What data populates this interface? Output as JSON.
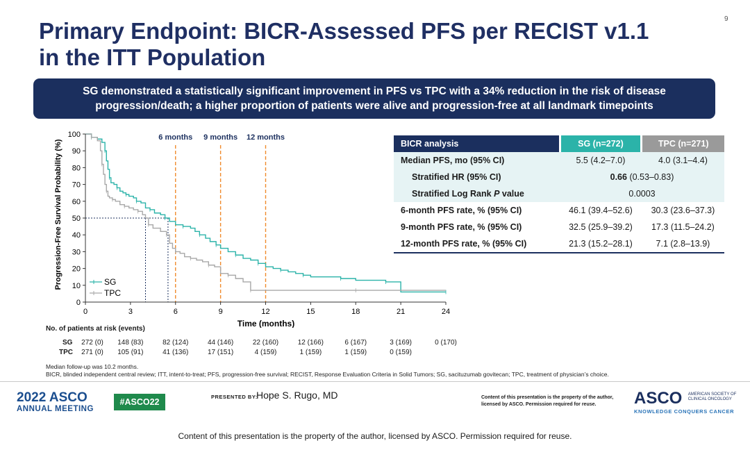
{
  "slide_number": "9",
  "title_line1": "Primary Endpoint: BICR-Assessed PFS per RECIST v1.1",
  "title_line2": "in the ITT Population",
  "banner_line1": "SG demonstrated a statistically significant improvement in PFS vs TPC with a 34% reduction in the risk of disease",
  "banner_line2": "progression/death; a higher proportion of patients were alive and progression-free at all landmark timepoints",
  "chart_data": {
    "type": "line",
    "ylabel": "Progression-Free Survival Probability (%)",
    "xlabel": "Time (months)",
    "xlim": [
      0,
      24
    ],
    "ylim": [
      0,
      100
    ],
    "x_ticks": [
      "0",
      "3",
      "6",
      "9",
      "12",
      "15",
      "18",
      "21",
      "24"
    ],
    "y_ticks": [
      "0",
      "10",
      "20",
      "30",
      "40",
      "50",
      "60",
      "70",
      "80",
      "90",
      "100"
    ],
    "landmarks": [
      {
        "x": 6,
        "label": "6 months"
      },
      {
        "x": 9,
        "label": "9 months"
      },
      {
        "x": 12,
        "label": "12 months"
      }
    ],
    "median_markers": [
      {
        "series": "SG",
        "x": 5.5
      },
      {
        "series": "TPC",
        "x": 4.0
      }
    ],
    "legend": "bottom-left",
    "colors": {
      "SG": "#2bb3a9",
      "TPC": "#a8a8a8",
      "landmark": "#f08a2c",
      "median": "#1b2f5e"
    },
    "series": [
      {
        "name": "SG",
        "x": [
          0,
          0.4,
          0.8,
          1.1,
          1.3,
          1.4,
          1.5,
          1.6,
          1.7,
          1.9,
          2.1,
          2.3,
          2.5,
          2.7,
          2.9,
          3.2,
          3.4,
          3.7,
          4.0,
          4.3,
          4.6,
          5.0,
          5.3,
          5.6,
          6.0,
          6.5,
          7.0,
          7.3,
          7.6,
          8.0,
          8.3,
          8.7,
          9.0,
          9.5,
          10.0,
          10.5,
          11.0,
          11.5,
          12.0,
          12.5,
          13.0,
          13.5,
          14.0,
          14.5,
          15.0,
          16.0,
          17.0,
          18.0,
          19.0,
          20.0,
          20.9,
          21.0,
          24.0
        ],
        "values": [
          100,
          98,
          97,
          95,
          90,
          84,
          79,
          74,
          71,
          70,
          68,
          66,
          65,
          64,
          63,
          62,
          60,
          59,
          56,
          55,
          53,
          52,
          50,
          48,
          46,
          45,
          44,
          42,
          40,
          38,
          36,
          34,
          32,
          30,
          28,
          26,
          25,
          23,
          21,
          20,
          19,
          18,
          17,
          16,
          15,
          15,
          14,
          13,
          13,
          12,
          12,
          6,
          6
        ]
      },
      {
        "name": "TPC",
        "x": [
          0,
          0.4,
          0.8,
          1.0,
          1.1,
          1.2,
          1.3,
          1.4,
          1.5,
          1.6,
          1.8,
          2.0,
          2.3,
          2.6,
          2.9,
          3.2,
          3.5,
          3.8,
          4.0,
          4.2,
          4.5,
          5.0,
          5.4,
          5.6,
          5.8,
          6.0,
          6.3,
          6.6,
          7.0,
          7.4,
          7.8,
          8.2,
          8.6,
          9.0,
          9.5,
          10.0,
          10.5,
          11.0,
          12.0,
          15.0,
          18.0,
          21.0,
          24.0
        ],
        "values": [
          100,
          98,
          96,
          90,
          82,
          76,
          70,
          66,
          63,
          62,
          61,
          60,
          58,
          57,
          56,
          55,
          54,
          52,
          50,
          46,
          44,
          42,
          40,
          35,
          32,
          30,
          29,
          27,
          26,
          25,
          24,
          22,
          21,
          17,
          16,
          14,
          12,
          7,
          7,
          7,
          7,
          7,
          7
        ]
      }
    ]
  },
  "legend": {
    "sg": "SG",
    "tpc": "TPC"
  },
  "risk": {
    "title": "No. of patients at risk (events)",
    "sg_label": "SG",
    "tpc_label": "TPC",
    "sg": [
      "272 (0)",
      "148 (83)",
      "82 (124)",
      "44 (146)",
      "22 (160)",
      "12 (166)",
      "6 (167)",
      "3 (169)",
      "0 (170)"
    ],
    "tpc": [
      "271 (0)",
      "105 (91)",
      "41 (136)",
      "17 (151)",
      "4 (159)",
      "1 (159)",
      "1 (159)",
      "0 (159)",
      ""
    ]
  },
  "table": {
    "header": {
      "label": "BICR analysis",
      "sg": "SG (n=272)",
      "tpc": "TPC (n=271)"
    },
    "median": {
      "label": "Median PFS, mo (95% CI)",
      "sg": "5.5 (4.2–7.0)",
      "tpc": "4.0 (3.1–4.4)"
    },
    "hr": {
      "label": "Stratified HR (95% CI)",
      "value_bold": "0.66",
      "value_rest": " (0.53–0.83)"
    },
    "logrank": {
      "label_pre": "Stratified Log Rank ",
      "label_p": "P",
      "label_post": " value",
      "value": "0.0003"
    },
    "rows": [
      {
        "label": "6-month PFS rate, % (95% CI)",
        "sg": "46.1 (39.4–52.6)",
        "tpc": "30.3 (23.6–37.3)"
      },
      {
        "label": "9-month PFS rate, % (95% CI)",
        "sg": "32.5 (25.9–39.2)",
        "tpc": "17.3 (11.5–24.2)"
      },
      {
        "label": "12-month PFS rate, % (95% CI)",
        "sg": "21.3 (15.2–28.1)",
        "tpc": "7.1 (2.8–13.9)"
      }
    ]
  },
  "footnote1": "Median follow-up was 10.2 months.",
  "footnote2": "BICR, blinded independent central review; ITT, intent-to-treat; PFS, progression-free survival; RECIST, Response Evaluation Criteria in Solid Tumors; SG, sacituzumab govitecan; TPC, treatment of physician’s choice.",
  "footer": {
    "asco_year": "2022 ASCO",
    "asco_meeting": "ANNUAL MEETING",
    "hashtag": "#ASCO22",
    "presented_by": "PRESENTED BY:",
    "presenter": "Hope S. Rugo, MD",
    "small_notice": "Content of this presentation is the property of the author, licensed by ASCO. Permission required for reuse.",
    "asco_word": "ASCO",
    "asco_society": "AMERICAN SOCIETY OF CLINICAL ONCOLOGY",
    "asco_tagline": "KNOWLEDGE CONQUERS CANCER",
    "bottom_notice": "Content of this presentation is the property of the author, licensed by ASCO. Permission required for reuse."
  }
}
